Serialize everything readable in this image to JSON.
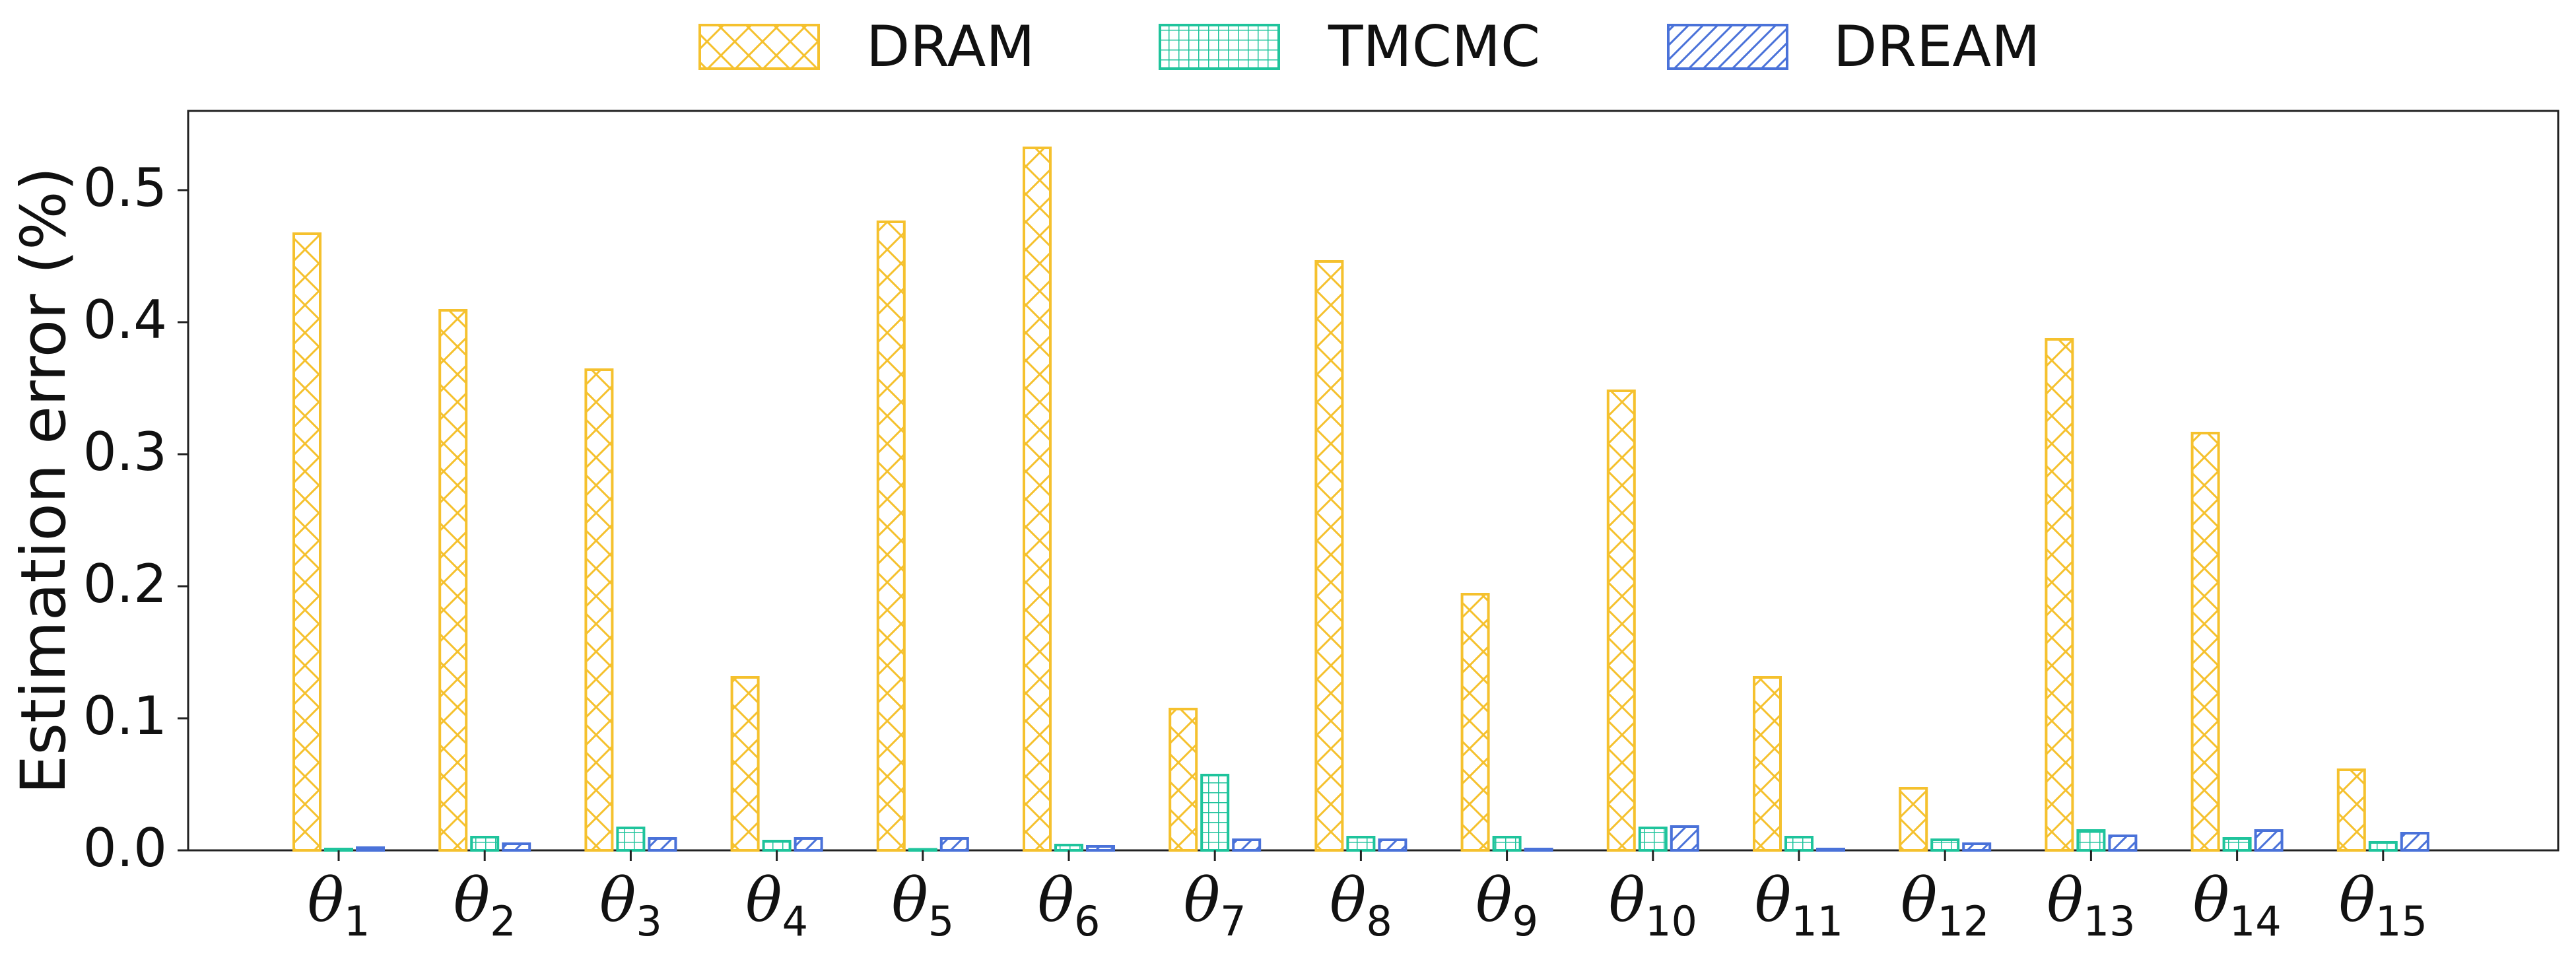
{
  "chart_data": {
    "type": "bar",
    "title": "",
    "xlabel": "",
    "ylabel": "Estimation error (%)",
    "ylim": [
      0,
      0.56
    ],
    "yticks": [
      0.0,
      0.1,
      0.2,
      0.3,
      0.4,
      0.5
    ],
    "ytick_labels": [
      "0.0",
      "0.1",
      "0.2",
      "0.3",
      "0.4",
      "0.5"
    ],
    "grid": false,
    "legend_position": "top-center",
    "categories": [
      {
        "symbol": "θ",
        "sub": "1"
      },
      {
        "symbol": "θ",
        "sub": "2"
      },
      {
        "symbol": "θ",
        "sub": "3"
      },
      {
        "symbol": "θ",
        "sub": "4"
      },
      {
        "symbol": "θ",
        "sub": "5"
      },
      {
        "symbol": "θ",
        "sub": "6"
      },
      {
        "symbol": "θ",
        "sub": "7"
      },
      {
        "symbol": "θ",
        "sub": "8"
      },
      {
        "symbol": "θ",
        "sub": "9"
      },
      {
        "symbol": "θ",
        "sub": "10"
      },
      {
        "symbol": "θ",
        "sub": "11"
      },
      {
        "symbol": "θ",
        "sub": "12"
      },
      {
        "symbol": "θ",
        "sub": "13"
      },
      {
        "symbol": "θ",
        "sub": "14"
      },
      {
        "symbol": "θ",
        "sub": "15"
      }
    ],
    "series": [
      {
        "name": "DRAM",
        "color": "#f5c12e",
        "hatch": "cross",
        "values": [
          0.467,
          0.409,
          0.364,
          0.131,
          0.476,
          0.532,
          0.107,
          0.446,
          0.194,
          0.348,
          0.131,
          0.047,
          0.387,
          0.316,
          0.061
        ]
      },
      {
        "name": "TMCMC",
        "color": "#1fc49c",
        "hatch": "grid",
        "values": [
          0.001,
          0.01,
          0.017,
          0.007,
          0.0,
          0.004,
          0.057,
          0.01,
          0.01,
          0.017,
          0.01,
          0.008,
          0.015,
          0.009,
          0.006
        ]
      },
      {
        "name": "DREAM",
        "color": "#4a72d9",
        "hatch": "diagonal",
        "values": [
          0.002,
          0.005,
          0.009,
          0.009,
          0.009,
          0.003,
          0.008,
          0.008,
          0.001,
          0.018,
          0.001,
          0.005,
          0.011,
          0.015,
          0.013
        ]
      }
    ]
  }
}
